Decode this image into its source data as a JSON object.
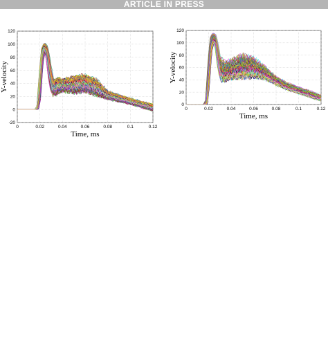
{
  "banner": {
    "text": "ARTICLE IN PRESS"
  },
  "chart_data": [
    {
      "type": "line",
      "xlabel": "Time, ms",
      "ylabel": "Y-velocity",
      "xlim": [
        0,
        0.12
      ],
      "ylim": [
        -20,
        120
      ],
      "xticks": [
        "0",
        "0.02",
        "0.04",
        "0.06",
        "0.08",
        "0.1",
        "0.12"
      ],
      "yticks": [
        "-20",
        "0",
        "20",
        "40",
        "60",
        "80",
        "100",
        "120"
      ],
      "grid": true,
      "series_count_approx": 200,
      "envelope": {
        "x": [
          0,
          0.016,
          0.018,
          0.02,
          0.022,
          0.024,
          0.026,
          0.028,
          0.03,
          0.032,
          0.036,
          0.04,
          0.05,
          0.06,
          0.07,
          0.08,
          0.09,
          0.1,
          0.11,
          0.12
        ],
        "upper": [
          0,
          0,
          5,
          55,
          95,
          102,
          98,
          82,
          58,
          45,
          48,
          46,
          50,
          52,
          45,
          28,
          22,
          17,
          12,
          8
        ],
        "lower": [
          0,
          0,
          0,
          15,
          70,
          88,
          80,
          48,
          28,
          22,
          25,
          28,
          26,
          28,
          22,
          16,
          12,
          8,
          3,
          -2
        ]
      },
      "palette": [
        "#e6194b",
        "#3cb44b",
        "#ffe119",
        "#4363d8",
        "#f58231",
        "#911eb4",
        "#46f0f0",
        "#f032e6",
        "#bcf60c",
        "#fabebe",
        "#008080",
        "#9a6324",
        "#800000",
        "#808000",
        "#000075",
        "#808080"
      ]
    },
    {
      "type": "line",
      "xlabel": "Time, ms",
      "ylabel": "Y-velocity",
      "xlim": [
        0,
        0.12
      ],
      "ylim": [
        0,
        120
      ],
      "xticks": [
        "0",
        "0.02",
        "0.04",
        "0.06",
        "0.08",
        "0.1",
        "0.12"
      ],
      "yticks": [
        "0",
        "20",
        "40",
        "60",
        "80",
        "100",
        "120"
      ],
      "grid": true,
      "series_count_approx": 200,
      "envelope": {
        "x": [
          0,
          0.016,
          0.018,
          0.02,
          0.022,
          0.024,
          0.026,
          0.028,
          0.03,
          0.032,
          0.036,
          0.04,
          0.05,
          0.06,
          0.07,
          0.08,
          0.09,
          0.1,
          0.11,
          0.12
        ],
        "upper": [
          0,
          0,
          8,
          70,
          110,
          116,
          114,
          100,
          78,
          72,
          68,
          72,
          80,
          75,
          62,
          45,
          35,
          28,
          22,
          15
        ],
        "lower": [
          0,
          0,
          0,
          30,
          85,
          100,
          96,
          65,
          45,
          38,
          40,
          43,
          45,
          46,
          42,
          32,
          24,
          18,
          12,
          6
        ]
      },
      "palette": [
        "#e6194b",
        "#3cb44b",
        "#ffe119",
        "#4363d8",
        "#f58231",
        "#911eb4",
        "#46f0f0",
        "#f032e6",
        "#bcf60c",
        "#fabebe",
        "#008080",
        "#9a6324",
        "#800000",
        "#808000",
        "#000075",
        "#808080"
      ]
    }
  ]
}
